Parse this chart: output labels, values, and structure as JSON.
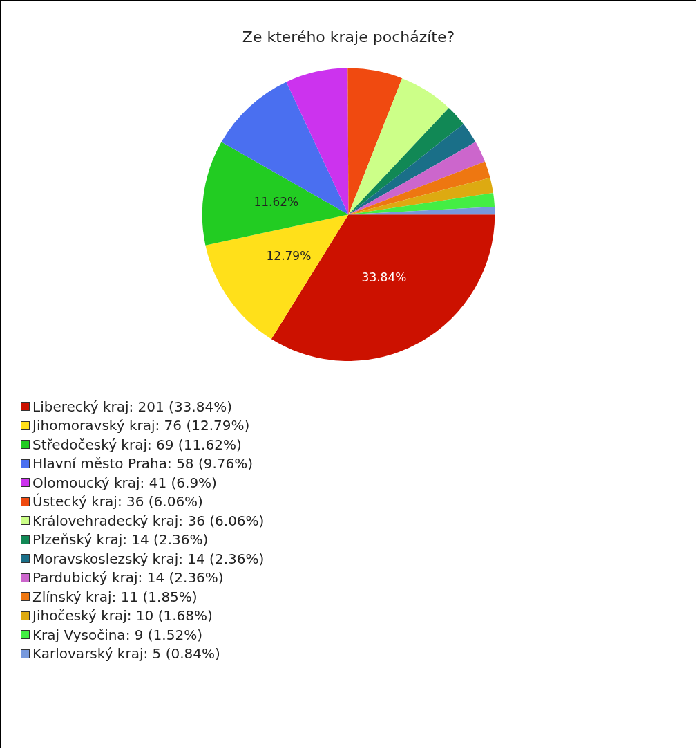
{
  "chart_data": {
    "type": "pie",
    "title": "Ze kterého kraje pocházíte?",
    "categories": [
      "Liberecký kraj: 201 (33.84%)",
      "Jihomoravský kraj: 76 (12.79%)",
      "Středočeský kraj: 69 (11.62%)",
      "Hlavní město Praha: 58 (9.76%)",
      "Olomoucký kraj: 41 (6.9%)",
      "Ústecký kraj: 36 (6.06%)",
      "Královehradecký kraj: 36 (6.06%)",
      "Plzeňský kraj: 14 (2.36%)",
      "Moravskoslezský kraj: 14 (2.36%)",
      "Pardubický kraj: 14 (2.36%)",
      "Zlínský kraj: 11 (1.85%)",
      "Jihočeský kraj: 10 (1.68%)",
      "Kraj Vysočina: 9 (1.52%)",
      "Karlovarský kraj: 5 (0.84%)"
    ],
    "values": [
      33.84,
      12.79,
      11.62,
      9.76,
      6.9,
      6.06,
      6.06,
      2.36,
      2.36,
      2.36,
      1.85,
      1.68,
      1.52,
      0.84
    ],
    "colors": [
      "#cc1100",
      "#ffe01a",
      "#22cc22",
      "#4a6ff0",
      "#cc33ee",
      "#f04a10",
      "#ccff88",
      "#118855",
      "#1a6f88",
      "#cc66cc",
      "#ee7711",
      "#ddaa11",
      "#44ee44",
      "#7799dd"
    ],
    "value_labels": [
      "33.84%",
      "12.79%",
      "11.62%",
      null,
      null,
      null,
      null,
      null,
      null,
      null,
      null,
      null,
      null,
      null
    ],
    "legend": "bottom"
  }
}
